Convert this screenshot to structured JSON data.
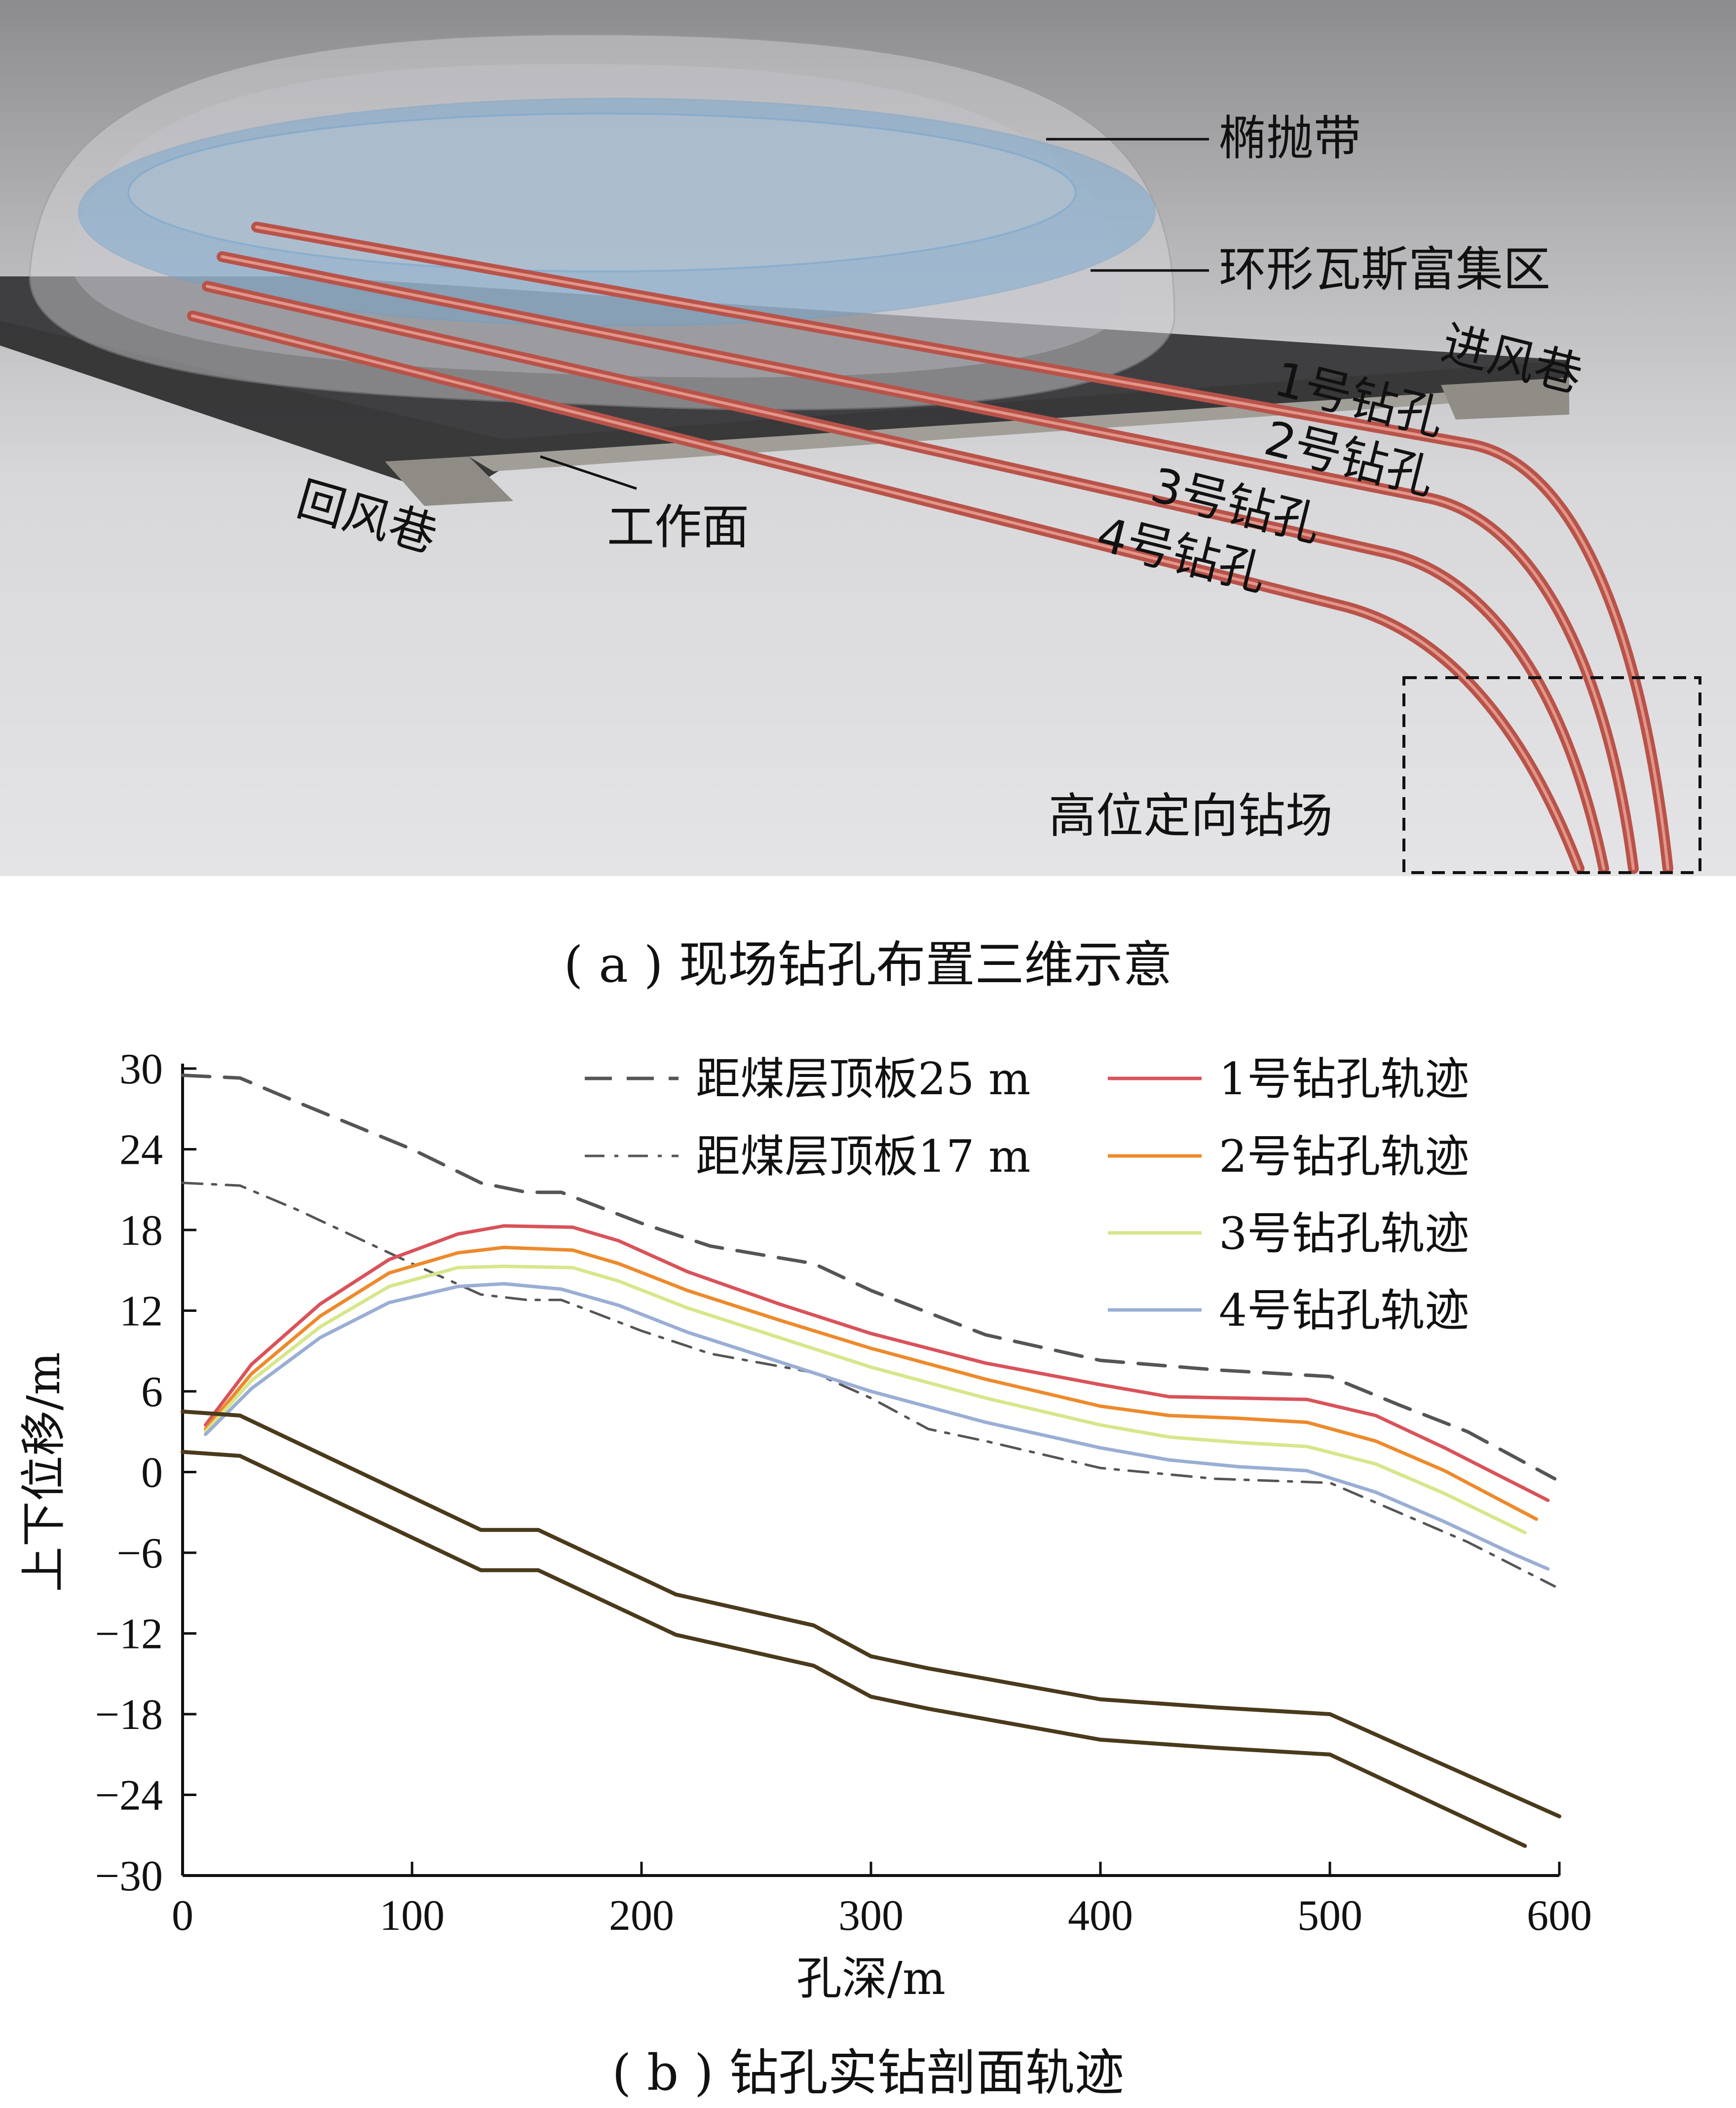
{
  "panel_a": {
    "labels": {
      "ellipsoid_zone": "椭抛带",
      "gas_ring": "环形瓦斯富集区",
      "intake_roadway": "进风巷",
      "hole1": "1号钻孔",
      "hole2": "2号钻孔",
      "hole3": "3号钻孔",
      "hole4": "4号钻孔",
      "return_roadway": "回风巷",
      "working_face": "工作面",
      "drilling_site": "高位定向钻场"
    },
    "caption": "( a ) 现场钻孔布置三维示意",
    "colors": {
      "borehole": "#c9665a",
      "gas_ring": "#7fb0d6",
      "ground": "#2e2e30"
    }
  },
  "panel_b": {
    "caption": "( b ) 钻孔实钻剖面轨迹"
  },
  "chart_data": {
    "type": "line",
    "xlabel": "孔深/m",
    "ylabel": "上下位移/m",
    "xlim": [
      0,
      600
    ],
    "ylim": [
      -30,
      30
    ],
    "xticks": [
      "0",
      "100",
      "200",
      "300",
      "400",
      "500",
      "600"
    ],
    "yticks": [
      "30",
      "24",
      "18",
      "12",
      "6",
      "0",
      "−6",
      "−12",
      "−18",
      "−24",
      "−30"
    ],
    "legend_position": "top-right",
    "series": [
      {
        "name": "距煤层顶板25 m",
        "color": "#555555",
        "dash": "dashed",
        "width": 7,
        "x": [
          0,
          25,
          50,
          100,
          130,
          150,
          165,
          200,
          230,
          275,
          300,
          350,
          400,
          450,
          500,
          530,
          560,
          598
        ],
        "y": [
          29.5,
          29.3,
          27.5,
          24,
          21.5,
          20.8,
          20.8,
          18.5,
          16.8,
          15.5,
          13.5,
          10.2,
          8.3,
          7.6,
          7.1,
          5,
          3,
          -0.5
        ]
      },
      {
        "name": "距煤层顶板17 m",
        "color": "#555555",
        "dash": "dashdot",
        "width": 5,
        "x": [
          0,
          25,
          50,
          100,
          130,
          150,
          165,
          200,
          230,
          275,
          300,
          325,
          350,
          400,
          450,
          500,
          530,
          560,
          598
        ],
        "y": [
          21.5,
          21.3,
          19.5,
          15.5,
          13.2,
          12.8,
          12.8,
          10.5,
          8.8,
          7.4,
          5.5,
          3.2,
          2.3,
          0.3,
          -0.5,
          -0.8,
          -3,
          -5.2,
          -8.5
        ]
      },
      {
        "name": "1号钻孔轨迹",
        "color": "#d9525a",
        "dash": "solid",
        "width": 7,
        "x": [
          10,
          30,
          60,
          90,
          120,
          140,
          170,
          190,
          220,
          260,
          300,
          350,
          400,
          430,
          460,
          490,
          520,
          550,
          580,
          595
        ],
        "y": [
          3.5,
          8,
          12.5,
          15.8,
          17.7,
          18.3,
          18.2,
          17.2,
          14.9,
          12.5,
          10.3,
          8.1,
          6.5,
          5.6,
          5.5,
          5.4,
          4.2,
          1.8,
          -0.8,
          -2.1
        ]
      },
      {
        "name": "2号钻孔轨迹",
        "color": "#ed8a2c",
        "dash": "solid",
        "width": 7,
        "x": [
          10,
          30,
          60,
          90,
          120,
          140,
          170,
          190,
          220,
          260,
          300,
          350,
          400,
          430,
          460,
          490,
          520,
          550,
          580,
          590
        ],
        "y": [
          3.2,
          7.3,
          11.6,
          14.8,
          16.3,
          16.7,
          16.5,
          15.5,
          13.5,
          11.3,
          9.2,
          6.9,
          4.9,
          4.2,
          4.0,
          3.7,
          2.3,
          0.1,
          -2.6,
          -3.5
        ]
      },
      {
        "name": "3号钻孔轨迹",
        "color": "#d7e68a",
        "dash": "solid",
        "width": 7,
        "x": [
          10,
          30,
          60,
          90,
          120,
          140,
          170,
          190,
          220,
          260,
          300,
          350,
          400,
          430,
          460,
          490,
          520,
          550,
          585
        ],
        "y": [
          3.0,
          6.8,
          10.8,
          13.8,
          15.2,
          15.3,
          15.2,
          14.2,
          12.2,
          10.0,
          7.8,
          5.5,
          3.5,
          2.6,
          2.2,
          1.9,
          0.6,
          -1.6,
          -4.5
        ]
      },
      {
        "name": "4号钻孔轨迹",
        "color": "#9aaed4",
        "dash": "solid",
        "width": 7,
        "x": [
          10,
          30,
          60,
          90,
          120,
          140,
          165,
          190,
          220,
          260,
          300,
          350,
          400,
          430,
          460,
          490,
          520,
          550,
          580,
          595
        ],
        "y": [
          2.8,
          6.2,
          10.0,
          12.6,
          13.8,
          14.0,
          13.6,
          12.4,
          10.4,
          8.2,
          6.0,
          3.7,
          1.8,
          0.9,
          0.4,
          0.1,
          -1.5,
          -3.7,
          -6.1,
          -7.2
        ]
      },
      {
        "color": "#4a3a1c",
        "dash": "solid",
        "width": 8,
        "x": [
          0,
          25,
          130,
          155,
          200,
          215,
          275,
          300,
          325,
          400,
          450,
          500,
          600
        ],
        "y": [
          4.5,
          4.2,
          -4.3,
          -4.3,
          -7.9,
          -9.1,
          -11.4,
          -13.7,
          -14.6,
          -16.9,
          -17.5,
          -18,
          -25.6
        ]
      },
      {
        "color": "#4a3a1c",
        "dash": "solid",
        "width": 8,
        "x": [
          0,
          25,
          130,
          155,
          200,
          215,
          275,
          300,
          325,
          400,
          450,
          500,
          585
        ],
        "y": [
          1.5,
          1.2,
          -7.3,
          -7.3,
          -10.9,
          -12.1,
          -14.4,
          -16.7,
          -17.6,
          -19.9,
          -20.5,
          -21,
          -27.8
        ]
      }
    ]
  }
}
